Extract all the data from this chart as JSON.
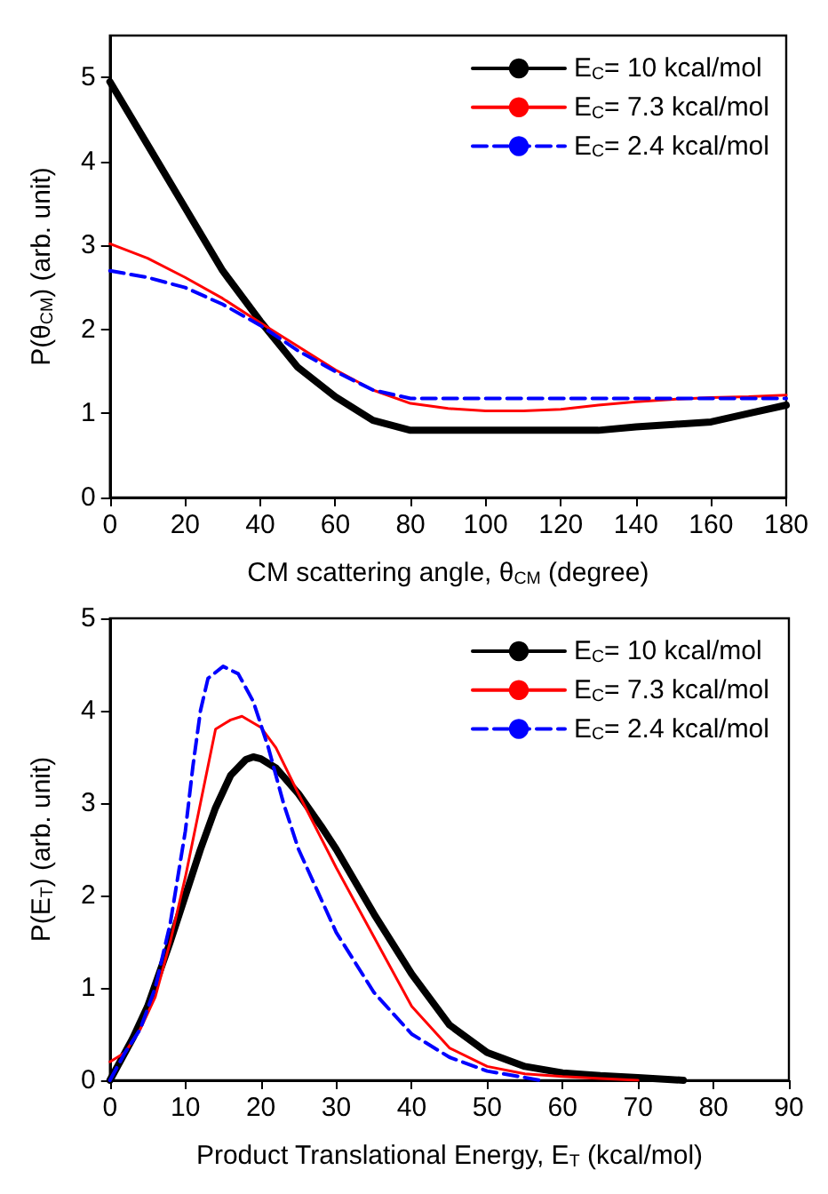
{
  "chart_data": [
    {
      "type": "line",
      "xlabel": "CM scattering angle, θ$_{CM}$ (degree)",
      "ylabel": "P(θ$_{CM}$) (arb. unit)",
      "xlim": [
        0,
        180
      ],
      "xticks": [
        0,
        20,
        40,
        60,
        80,
        100,
        120,
        140,
        160,
        180
      ],
      "ylim": [
        0,
        5.5
      ],
      "yticks": [
        0,
        1,
        2,
        3,
        4,
        5
      ],
      "legend": "top right",
      "marker": "none",
      "x": [
        0,
        10,
        20,
        30,
        40,
        50,
        60,
        70,
        80,
        90,
        100,
        110,
        120,
        130,
        140,
        150,
        160,
        170,
        180
      ],
      "series": [
        {
          "name": "E$_{C}$= 10 kcal/mol",
          "color": "#000000",
          "line_style": "solid",
          "values": [
            4.95,
            4.2,
            3.45,
            2.7,
            2.1,
            1.55,
            1.2,
            0.92,
            0.8,
            0.8,
            0.8,
            0.8,
            0.8,
            0.8,
            0.84,
            0.87,
            0.9,
            1.0,
            1.1
          ]
        },
        {
          "name": "E$_{C}$= 7.3 kcal/mol",
          "color": "#ff0000",
          "line_style": "solid",
          "values": [
            3.02,
            2.85,
            2.62,
            2.37,
            2.08,
            1.8,
            1.52,
            1.28,
            1.12,
            1.06,
            1.03,
            1.03,
            1.05,
            1.1,
            1.14,
            1.17,
            1.19,
            1.2,
            1.22
          ]
        },
        {
          "name": "E$_{C}$= 2.4 kcal/mol",
          "color": "#0000ff",
          "line_style": "dashed",
          "values": [
            2.7,
            2.62,
            2.5,
            2.3,
            2.05,
            1.75,
            1.5,
            1.28,
            1.18,
            1.18,
            1.18,
            1.18,
            1.18,
            1.18,
            1.18,
            1.18,
            1.18,
            1.18,
            1.18
          ]
        }
      ]
    },
    {
      "type": "line",
      "xlabel": "Product Translational Energy, E$_{T}$ (kcal/mol)",
      "ylabel": "P(E$_{T}$) (arb. unit)",
      "xlim": [
        0,
        90
      ],
      "xticks": [
        0,
        10,
        20,
        30,
        40,
        50,
        60,
        70,
        80,
        90
      ],
      "ylim": [
        0,
        5
      ],
      "yticks": [
        0,
        1,
        2,
        3,
        4,
        5
      ],
      "legend": "top right",
      "marker": "none",
      "series": [
        {
          "name": "E$_{C}$= 10 kcal/mol",
          "color": "#000000",
          "line_style": "solid",
          "x": [
            0,
            1,
            3,
            5,
            8,
            10,
            12,
            14,
            16,
            18,
            19,
            20,
            22,
            25,
            28,
            30,
            35,
            40,
            45,
            50,
            55,
            60,
            65,
            70,
            76
          ],
          "values": [
            0,
            0.15,
            0.45,
            0.8,
            1.5,
            2.0,
            2.5,
            2.95,
            3.3,
            3.47,
            3.5,
            3.48,
            3.38,
            3.1,
            2.75,
            2.5,
            1.8,
            1.15,
            0.6,
            0.3,
            0.15,
            0.08,
            0.05,
            0.03,
            0
          ]
        },
        {
          "name": "E$_{C}$= 7.3 kcal/mol",
          "color": "#ff0000",
          "line_style": "solid",
          "x": [
            0,
            2,
            4,
            6,
            8,
            10,
            12,
            14,
            16,
            17.5,
            20,
            22,
            25,
            30,
            35,
            40,
            45,
            50,
            55,
            60,
            65,
            70
          ],
          "values": [
            0.2,
            0.3,
            0.55,
            0.9,
            1.5,
            2.2,
            3.0,
            3.8,
            3.9,
            3.94,
            3.82,
            3.6,
            3.1,
            2.3,
            1.55,
            0.8,
            0.35,
            0.15,
            0.07,
            0.04,
            0.02,
            0
          ]
        },
        {
          "name": "E$_{C}$= 2.4 kcal/mol",
          "color": "#0000ff",
          "line_style": "dashed",
          "x": [
            0,
            2,
            4,
            6,
            8,
            10,
            11,
            12,
            13,
            15,
            17,
            19,
            21,
            23,
            25,
            30,
            35,
            40,
            45,
            50,
            55,
            57
          ],
          "values": [
            0,
            0.3,
            0.55,
            1.0,
            1.7,
            2.7,
            3.4,
            4.0,
            4.35,
            4.48,
            4.4,
            4.1,
            3.6,
            3.0,
            2.5,
            1.6,
            0.95,
            0.5,
            0.25,
            0.1,
            0.03,
            0
          ]
        }
      ]
    }
  ]
}
